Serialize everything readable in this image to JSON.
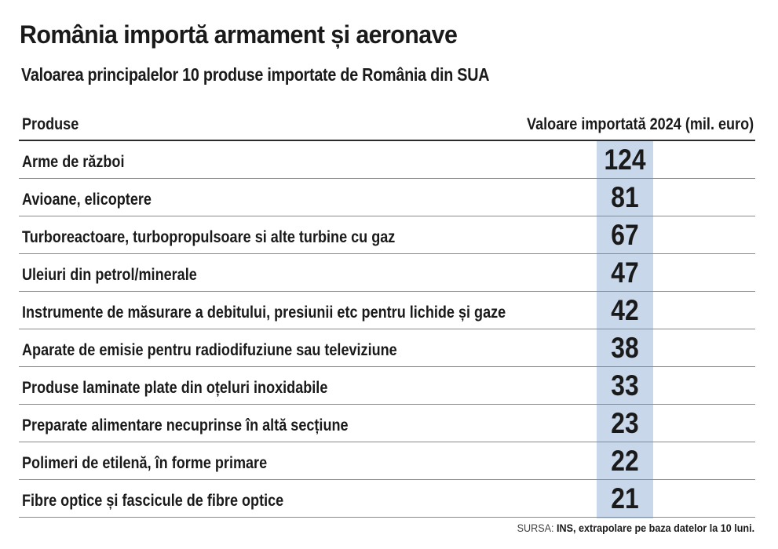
{
  "title": "România importă armament și aeronave",
  "subtitle": "Valoarea principalelor 10 produse importate de România din SUA",
  "table": {
    "header_product": "Produse",
    "header_value": "Valoare importată  2024 (mil. euro)"
  },
  "chart_data": {
    "type": "table",
    "title": "România importă armament și aeronave",
    "subtitle": "Valoarea principalelor 10 produse importate de România din SUA",
    "columns": [
      "Produse",
      "Valoare importată  2024 (mil. euro)"
    ],
    "categories": [
      "Arme de război",
      "Avioane, elicoptere",
      "Turboreactoare, turbopropulsoare si alte turbine cu gaz",
      "Uleiuri din petrol/minerale",
      "Instrumente de măsurare a debitului, presiunii etc pentru lichide și gaze",
      "Aparate de emisie pentru radiodifuziune sau televiziune",
      "Produse laminate plate din oțeluri inoxidabile",
      "Preparate alimentare necuprinse în altă secțiune",
      "Polimeri de etilenă, în forme primare",
      "Fibre optice și fascicule de fibre optice"
    ],
    "values": [
      124,
      81,
      67,
      47,
      42,
      38,
      33,
      23,
      22,
      21
    ],
    "highlight_color": "#c9d7ea"
  },
  "source": {
    "label": "SURSA:",
    "text": "INS, extrapolare pe baza datelor la 10 luni."
  }
}
